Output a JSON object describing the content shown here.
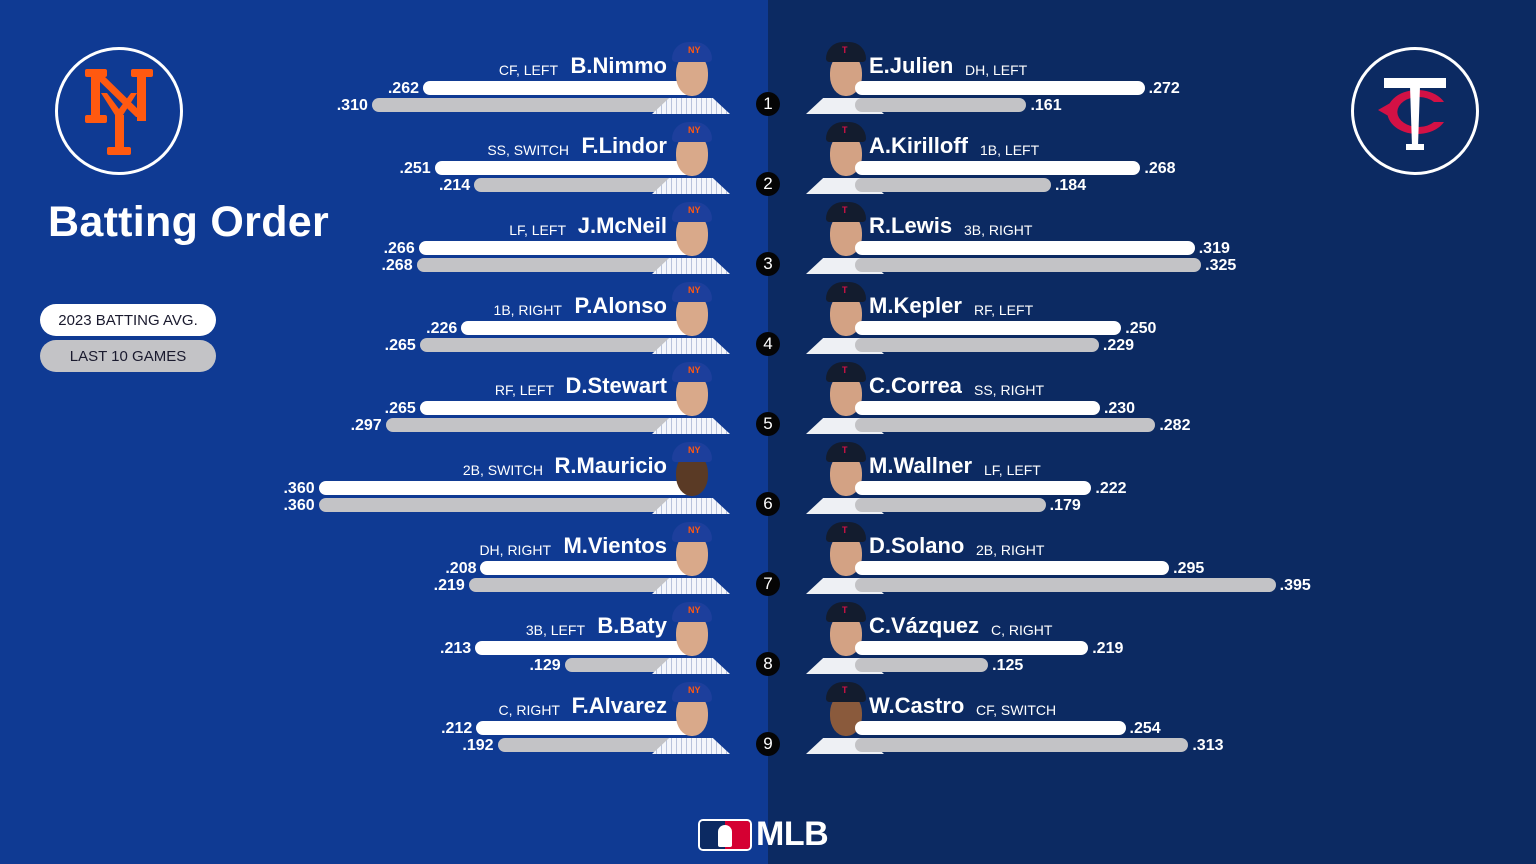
{
  "title": "Batting Order",
  "legend": {
    "season": "2023 BATTING AVG.",
    "last10": "LAST 10 GAMES"
  },
  "colors": {
    "mets_bg": "#0f3a93",
    "twins_bg": "#0c2a62",
    "mets_orange": "#ff5910",
    "twins_red": "#d31145",
    "season_bar": "#ffffff",
    "last10_bar": "#c3c3c6"
  },
  "teams": {
    "away": {
      "name": "Mets",
      "logo": "NY"
    },
    "home": {
      "name": "Twins",
      "logo": "TC"
    }
  },
  "footer": {
    "brand": "MLB"
  },
  "chart_data": {
    "type": "bar",
    "title": "Batting Order",
    "series_names": [
      "2023 BATTING AVG.",
      "LAST 10 GAMES"
    ],
    "mets": [
      {
        "order": "1",
        "name": "B.Nimmo",
        "pos": "CF, LEFT",
        "season": ".262",
        "last10": ".310"
      },
      {
        "order": "2",
        "name": "F.Lindor",
        "pos": "SS, SWITCH",
        "season": ".251",
        "last10": ".214"
      },
      {
        "order": "3",
        "name": "J.McNeil",
        "pos": "LF, LEFT",
        "season": ".266",
        "last10": ".268"
      },
      {
        "order": "4",
        "name": "P.Alonso",
        "pos": "1B, RIGHT",
        "season": ".226",
        "last10": ".265"
      },
      {
        "order": "5",
        "name": "D.Stewart",
        "pos": "RF, LEFT",
        "season": ".265",
        "last10": ".297"
      },
      {
        "order": "6",
        "name": "R.Mauricio",
        "pos": "2B, SWITCH",
        "season": ".360",
        "last10": ".360"
      },
      {
        "order": "7",
        "name": "M.Vientos",
        "pos": "DH, RIGHT",
        "season": ".208",
        "last10": ".219"
      },
      {
        "order": "8",
        "name": "B.Baty",
        "pos": "3B, LEFT",
        "season": ".213",
        "last10": ".129"
      },
      {
        "order": "9",
        "name": "F.Alvarez",
        "pos": "C, RIGHT",
        "season": ".212",
        "last10": ".192"
      }
    ],
    "twins": [
      {
        "order": "1",
        "name": "E.Julien",
        "pos": "DH, LEFT",
        "season": ".272",
        "last10": ".161"
      },
      {
        "order": "2",
        "name": "A.Kirilloff",
        "pos": "1B, LEFT",
        "season": ".268",
        "last10": ".184"
      },
      {
        "order": "3",
        "name": "R.Lewis",
        "pos": "3B, RIGHT",
        "season": ".319",
        "last10": ".325"
      },
      {
        "order": "4",
        "name": "M.Kepler",
        "pos": "RF, LEFT",
        "season": ".250",
        "last10": ".229"
      },
      {
        "order": "5",
        "name": "C.Correa",
        "pos": "SS, RIGHT",
        "season": ".230",
        "last10": ".282"
      },
      {
        "order": "6",
        "name": "M.Wallner",
        "pos": "LF, LEFT",
        "season": ".222",
        "last10": ".179"
      },
      {
        "order": "7",
        "name": "D.Solano",
        "pos": "2B, RIGHT",
        "season": ".295",
        "last10": ".395"
      },
      {
        "order": "8",
        "name": "C.Vázquez",
        "pos": "C, RIGHT",
        "season": ".219",
        "last10": ".125"
      },
      {
        "order": "9",
        "name": "W.Castro",
        "pos": "CF, SWITCH",
        "season": ".254",
        "last10": ".313"
      }
    ]
  }
}
